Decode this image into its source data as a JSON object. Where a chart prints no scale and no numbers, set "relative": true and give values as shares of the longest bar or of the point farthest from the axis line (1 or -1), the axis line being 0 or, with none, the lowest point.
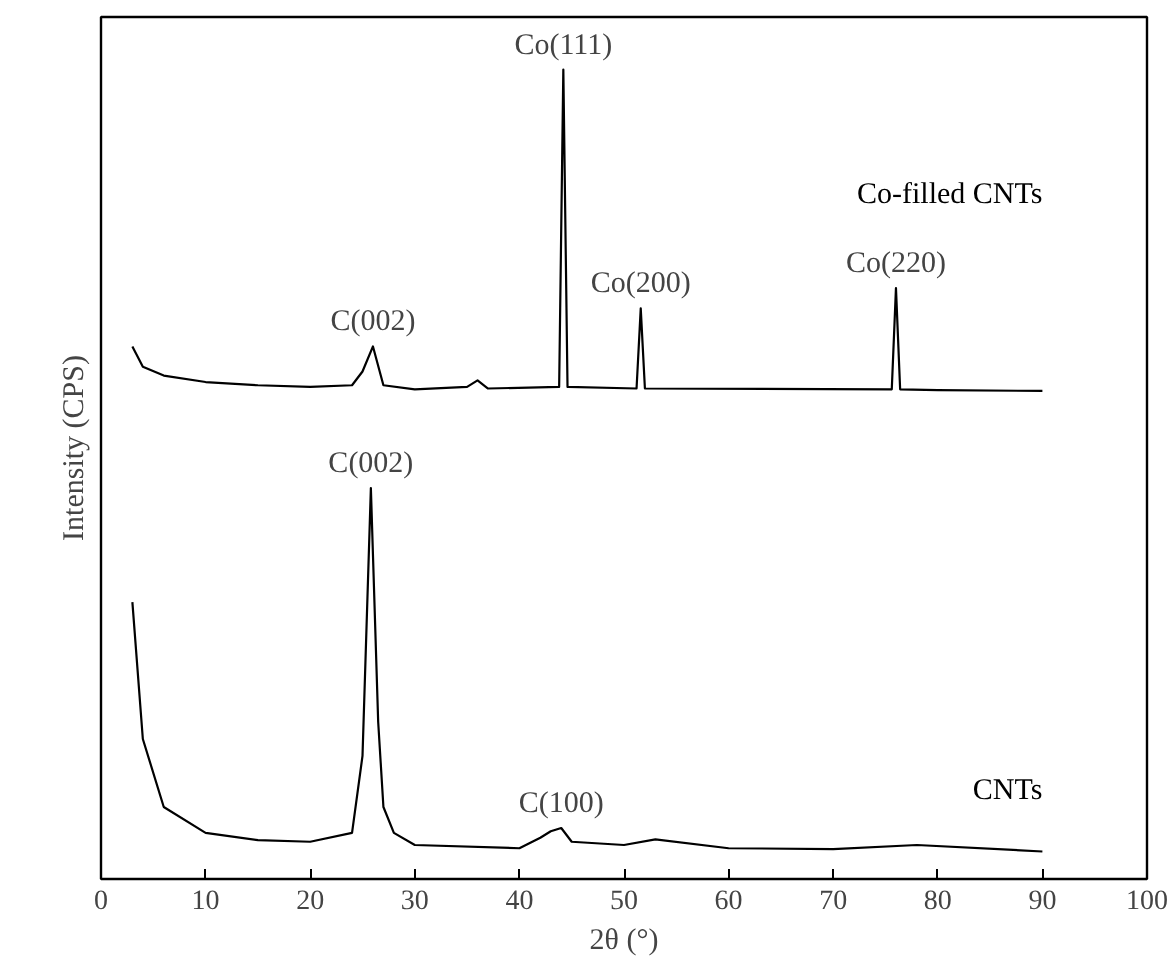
{
  "chart_data": {
    "type": "line",
    "relative": true,
    "xlabel": "2θ (°)",
    "ylabel": "Intensity (CPS)",
    "xlim": [
      0,
      100
    ],
    "xticks": [
      0,
      10,
      20,
      30,
      40,
      50,
      60,
      70,
      80,
      90,
      100
    ],
    "grid": false,
    "series": [
      {
        "name": "Co-filled CNTs",
        "color": "#000000",
        "x": [
          3,
          4,
          6,
          10,
          15,
          20,
          24,
          25,
          26,
          27,
          30,
          35,
          36,
          37,
          43.8,
          44.2,
          44.6,
          51.2,
          51.6,
          52,
          75.6,
          76,
          76.4,
          80,
          90
        ],
        "values": [
          0.658,
          0.633,
          0.622,
          0.614,
          0.61,
          0.608,
          0.61,
          0.627,
          0.658,
          0.61,
          0.605,
          0.608,
          0.616,
          0.606,
          0.608,
          1.0,
          0.608,
          0.606,
          0.705,
          0.606,
          0.605,
          0.73,
          0.605,
          0.604,
          0.603
        ]
      },
      {
        "name": "CNTs",
        "color": "#000000",
        "x": [
          3,
          4,
          6,
          10,
          15,
          20,
          24,
          25,
          25.8,
          26.5,
          27,
          28,
          30,
          40,
          42,
          43,
          44,
          45,
          50,
          53,
          60,
          70,
          78,
          90
        ],
        "values": [
          0.342,
          0.173,
          0.089,
          0.057,
          0.048,
          0.046,
          0.057,
          0.152,
          0.483,
          0.194,
          0.089,
          0.057,
          0.042,
          0.038,
          0.051,
          0.059,
          0.063,
          0.046,
          0.042,
          0.049,
          0.038,
          0.037,
          0.042,
          0.034
        ]
      }
    ],
    "annotations": [
      {
        "text": "C(002)",
        "x": 26,
        "y": 0.658
      },
      {
        "text": "Co(111)",
        "x": 44.2,
        "y": 1.0
      },
      {
        "text": "Co(200)",
        "x": 51.6,
        "y": 0.705
      },
      {
        "text": "Co(220)",
        "x": 76,
        "y": 0.73
      },
      {
        "text": "C(002)",
        "x": 25.8,
        "y": 0.483
      },
      {
        "text": "C(100)",
        "x": 44,
        "y": 0.063
      }
    ]
  }
}
